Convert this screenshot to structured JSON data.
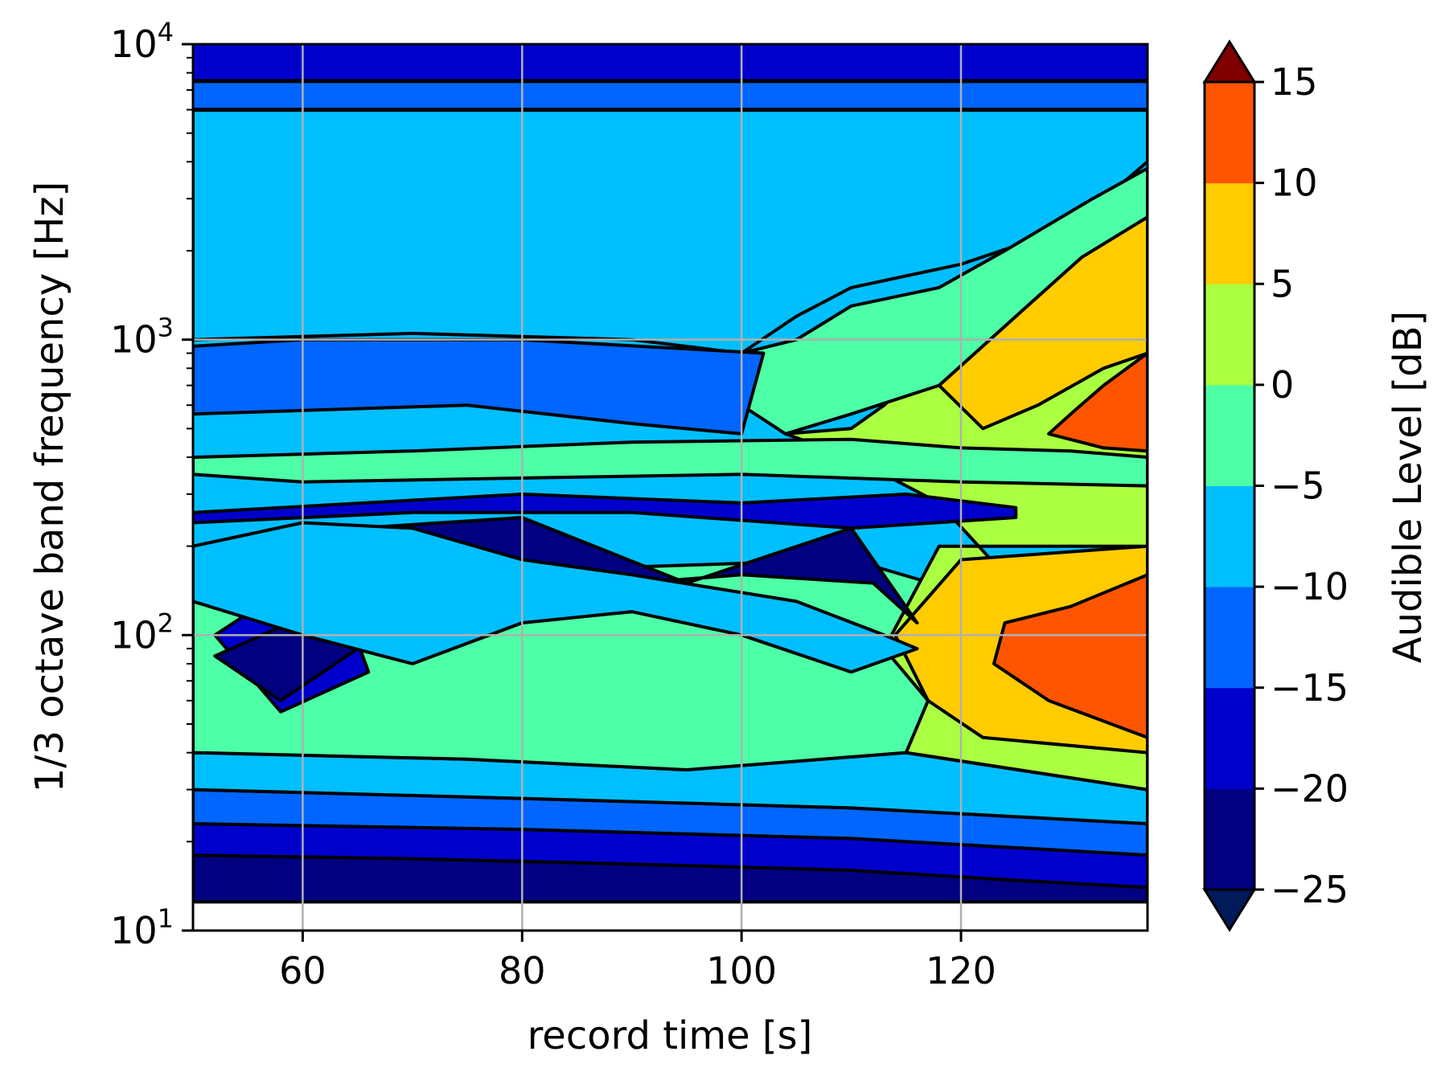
{
  "chart_data": {
    "type": "contourf",
    "xlabel": "record time [s]",
    "ylabel": "1/3 octave band frequency [Hz]",
    "xlim": [
      50,
      137
    ],
    "ylim": [
      10,
      10000
    ],
    "y_scale": "log",
    "grid": true,
    "x_ticks": [
      60,
      80,
      100,
      120
    ],
    "x_tick_labels": [
      "60",
      "80",
      "100",
      "120"
    ],
    "y_ticks": [
      10,
      100,
      1000,
      10000
    ],
    "y_tick_labels": [
      {
        "base": "10",
        "exp": "1"
      },
      {
        "base": "10",
        "exp": "2"
      },
      {
        "base": "10",
        "exp": "3"
      },
      {
        "base": "10",
        "exp": "4"
      }
    ],
    "colorbar": {
      "label": "Audible Level [dB]",
      "ticks": [
        15,
        10,
        5,
        0,
        -5,
        -10,
        -15,
        -20,
        -25
      ],
      "tick_labels": [
        "15",
        "10",
        "5",
        "0",
        "−5",
        "−10",
        "−15",
        "−20",
        "−25"
      ],
      "levels": [
        -25,
        -20,
        -15,
        -10,
        -5,
        0,
        5,
        10,
        15
      ],
      "colors": [
        "#000080",
        "#0000cd",
        "#0066ff",
        "#00bfff",
        "#4dffa6",
        "#aaff40",
        "#ffcc00",
        "#ff5500",
        "#c00000"
      ],
      "extend_low_color": "#001a5a",
      "extend_high_color": "#800000",
      "colormap": "jet"
    },
    "regions": [
      {
        "level": -22.5,
        "polygon": [
          [
            50,
            12.5
          ],
          [
            137,
            12.5
          ],
          [
            137,
            14
          ],
          [
            125,
            14.8
          ],
          [
            110,
            16
          ],
          [
            90,
            16.8
          ],
          [
            70,
            17.5
          ],
          [
            50,
            18
          ]
        ]
      },
      {
        "level": -17.5,
        "polygon": [
          [
            50,
            18
          ],
          [
            70,
            17.5
          ],
          [
            90,
            16.8
          ],
          [
            110,
            16
          ],
          [
            125,
            14.8
          ],
          [
            137,
            14
          ],
          [
            137,
            18
          ],
          [
            110,
            20.5
          ],
          [
            80,
            22
          ],
          [
            50,
            23
          ]
        ]
      },
      {
        "level": -12.5,
        "polygon": [
          [
            50,
            23
          ],
          [
            80,
            22
          ],
          [
            110,
            20.5
          ],
          [
            137,
            18
          ],
          [
            137,
            23
          ],
          [
            110,
            26
          ],
          [
            80,
            28
          ],
          [
            50,
            30
          ]
        ]
      },
      {
        "level": -7.5,
        "polygon": [
          [
            50,
            30
          ],
          [
            80,
            28
          ],
          [
            110,
            26
          ],
          [
            137,
            23
          ],
          [
            137,
            30
          ],
          [
            115,
            40
          ],
          [
            95,
            35
          ],
          [
            75,
            38
          ],
          [
            50,
            40
          ]
        ]
      },
      {
        "level": -2.5,
        "polygon": [
          [
            50,
            40
          ],
          [
            75,
            38
          ],
          [
            95,
            35
          ],
          [
            115,
            40
          ],
          [
            137,
            30
          ],
          [
            137,
            150
          ],
          [
            120,
            140
          ],
          [
            110,
            180
          ],
          [
            90,
            170
          ],
          [
            80,
            200
          ],
          [
            60,
            160
          ],
          [
            50,
            150
          ]
        ]
      },
      {
        "level": 2.5,
        "polygon": [
          [
            115,
            40
          ],
          [
            137,
            30
          ],
          [
            137,
            60
          ],
          [
            128,
            110
          ],
          [
            124,
            160
          ],
          [
            118,
            280
          ],
          [
            110,
            400
          ],
          [
            104,
            480
          ],
          [
            110,
            500
          ],
          [
            113,
            600
          ],
          [
            118,
            900
          ],
          [
            120,
            1300
          ],
          [
            125,
            1700
          ],
          [
            130,
            2100
          ],
          [
            137,
            3200
          ],
          [
            137,
            200
          ],
          [
            118,
            200
          ],
          [
            113,
            90
          ],
          [
            117,
            60
          ]
        ]
      },
      {
        "level": 7.5,
        "polygon": [
          [
            117,
            60
          ],
          [
            122,
            45
          ],
          [
            137,
            40
          ],
          [
            137,
            900
          ],
          [
            133,
            800
          ],
          [
            127,
            600
          ],
          [
            122,
            500
          ],
          [
            118,
            700
          ],
          [
            125,
            1200
          ],
          [
            131,
            1900
          ],
          [
            137,
            2600
          ],
          [
            137,
            200
          ],
          [
            120,
            180
          ],
          [
            114,
            100
          ]
        ]
      },
      {
        "level": 12.5,
        "polygon": [
          [
            123,
            80
          ],
          [
            128,
            60
          ],
          [
            137,
            45
          ],
          [
            137,
            160
          ],
          [
            130,
            125
          ],
          [
            124,
            110
          ]
        ]
      },
      {
        "level": 12.5,
        "polygon": [
          [
            128,
            480
          ],
          [
            133,
            430
          ],
          [
            137,
            420
          ],
          [
            137,
            900
          ],
          [
            133,
            700
          ],
          [
            130,
            560
          ]
        ]
      },
      {
        "level": -7.5,
        "polygon": [
          [
            50,
            1000
          ],
          [
            70,
            1050
          ],
          [
            90,
            1000
          ],
          [
            100,
            900
          ],
          [
            105,
            1200
          ],
          [
            110,
            1500
          ],
          [
            120,
            1800
          ],
          [
            130,
            2400
          ],
          [
            137,
            4000
          ],
          [
            137,
            6000
          ],
          [
            50,
            6000
          ]
        ]
      },
      {
        "level": -2.5,
        "polygon": [
          [
            100,
            900
          ],
          [
            105,
            1000
          ],
          [
            110,
            1300
          ],
          [
            118,
            1500
          ],
          [
            124,
            2000
          ],
          [
            132,
            3000
          ],
          [
            137,
            3800
          ],
          [
            137,
            2600
          ],
          [
            131,
            1900
          ],
          [
            125,
            1200
          ],
          [
            118,
            700
          ],
          [
            110,
            560
          ],
          [
            104,
            480
          ],
          [
            100,
            600
          ]
        ]
      },
      {
        "level": -12.5,
        "polygon": [
          [
            50,
            560
          ],
          [
            75,
            600
          ],
          [
            90,
            520
          ],
          [
            100,
            480
          ],
          [
            102,
            900
          ],
          [
            80,
            1000
          ],
          [
            60,
            1000
          ],
          [
            50,
            950
          ]
        ]
      },
      {
        "level": -5,
        "polygon": [
          [
            50,
            400
          ],
          [
            70,
            420
          ],
          [
            90,
            450
          ],
          [
            110,
            460
          ],
          [
            120,
            430
          ],
          [
            130,
            420
          ],
          [
            137,
            400
          ],
          [
            137,
            320
          ],
          [
            120,
            330
          ],
          [
            100,
            350
          ],
          [
            80,
            340
          ],
          [
            60,
            330
          ],
          [
            50,
            350
          ]
        ]
      },
      {
        "level": -17.5,
        "polygon": [
          [
            50,
            260
          ],
          [
            80,
            300
          ],
          [
            100,
            280
          ],
          [
            115,
            300
          ],
          [
            125,
            270
          ],
          [
            125,
            250
          ],
          [
            110,
            230
          ],
          [
            90,
            260
          ],
          [
            70,
            260
          ],
          [
            50,
            240
          ]
        ]
      },
      {
        "level": -22.5,
        "polygon": [
          [
            50,
            150
          ],
          [
            65,
            230
          ],
          [
            80,
            250
          ],
          [
            95,
            150
          ],
          [
            110,
            230
          ],
          [
            116,
            110
          ],
          [
            112,
            150
          ],
          [
            100,
            160
          ],
          [
            80,
            140
          ],
          [
            65,
            120
          ],
          [
            50,
            150
          ]
        ]
      },
      {
        "level": -20,
        "polygon": [
          [
            52,
            100
          ],
          [
            58,
            55
          ],
          [
            66,
            75
          ],
          [
            64,
            120
          ],
          [
            58,
            140
          ]
        ]
      },
      {
        "level": -22.5,
        "polygon": [
          [
            52,
            85
          ],
          [
            58,
            60
          ],
          [
            65,
            90
          ],
          [
            60,
            115
          ]
        ]
      },
      {
        "level": -10,
        "polygon": [
          [
            50,
            200
          ],
          [
            60,
            240
          ],
          [
            70,
            230
          ],
          [
            80,
            180
          ],
          [
            90,
            160
          ],
          [
            105,
            130
          ],
          [
            113,
            100
          ],
          [
            116,
            90
          ],
          [
            110,
            75
          ],
          [
            100,
            100
          ],
          [
            90,
            120
          ],
          [
            80,
            110
          ],
          [
            70,
            80
          ],
          [
            60,
            100
          ],
          [
            50,
            130
          ]
        ]
      }
    ]
  }
}
